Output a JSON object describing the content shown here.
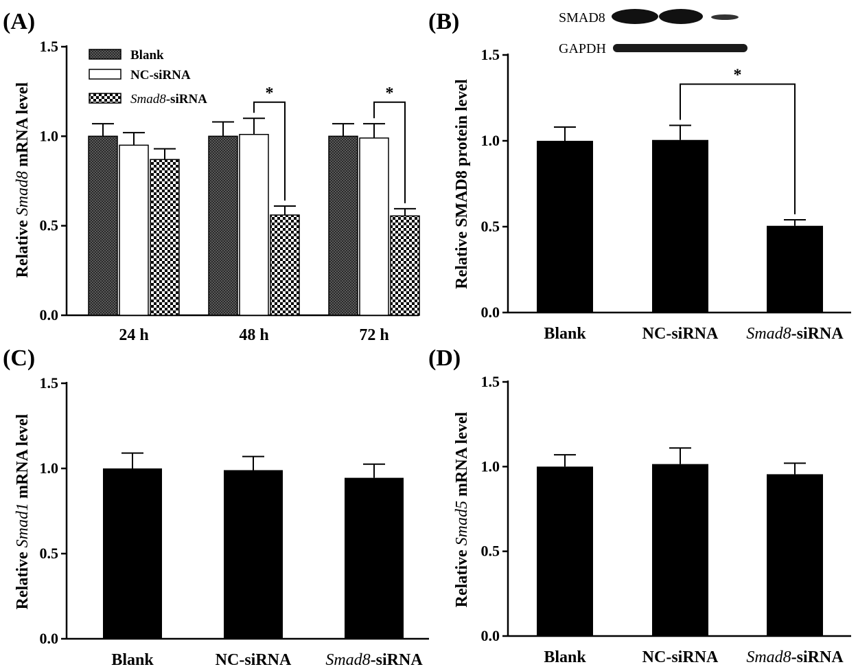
{
  "panels": {
    "A": {
      "label": "(A)",
      "ylabel_pre": "Relative ",
      "ylabel_gene": "Smad8",
      "ylabel_post": " mRNA level"
    },
    "B": {
      "label": "(B)",
      "ylabel": "Relative SMAD8 protein level"
    },
    "C": {
      "label": "(C)",
      "ylabel_pre": "Relative ",
      "ylabel_gene": "Smad1",
      "ylabel_post": " mRNA level"
    },
    "D": {
      "label": "(D)",
      "ylabel_pre": "Relative ",
      "ylabel_gene": "Smad5",
      "ylabel_post": " mRNA level"
    }
  },
  "ticks": [
    "0.0",
    "0.5",
    "1.0",
    "1.5"
  ],
  "group_labels": {
    "blank": "Blank",
    "nc": "NC-siRNA",
    "smad8_gene": "Smad8",
    "smad8_suffix": "-siRNA"
  },
  "blot": {
    "band1": "SMAD8",
    "band2": "GAPDH"
  },
  "significance": "*",
  "chart_data": [
    {
      "panel": "A",
      "type": "bar",
      "categories": [
        "24 h",
        "48 h",
        "72 h"
      ],
      "series": [
        {
          "name": "Blank",
          "values": [
            1.0,
            1.0,
            1.0
          ],
          "errors": [
            0.07,
            0.08,
            0.07
          ]
        },
        {
          "name": "NC-siRNA",
          "values": [
            0.95,
            1.01,
            0.99
          ],
          "errors": [
            0.07,
            0.09,
            0.08
          ]
        },
        {
          "name": "Smad8-siRNA",
          "values": [
            0.87,
            0.56,
            0.555
          ],
          "errors": [
            0.06,
            0.05,
            0.04
          ]
        }
      ],
      "significance": [
        {
          "category": "48 h",
          "between": [
            "NC-siRNA",
            "Smad8-siRNA"
          ],
          "label": "*"
        },
        {
          "category": "72 h",
          "between": [
            "NC-siRNA",
            "Smad8-siRNA"
          ],
          "label": "*"
        }
      ],
      "ylabel": "Relative Smad8 mRNA level",
      "ylim": [
        0,
        1.5
      ]
    },
    {
      "panel": "B",
      "type": "bar",
      "categories": [
        "Blank",
        "NC-siRNA",
        "Smad8-siRNA"
      ],
      "values": [
        1.0,
        1.005,
        0.505
      ],
      "errors": [
        0.08,
        0.085,
        0.035
      ],
      "significance": [
        {
          "between": [
            "NC-siRNA",
            "Smad8-siRNA"
          ],
          "label": "*"
        }
      ],
      "ylabel": "Relative SMAD8 protein level",
      "ylim": [
        0,
        1.5
      ]
    },
    {
      "panel": "C",
      "type": "bar",
      "categories": [
        "Blank",
        "NC-siRNA",
        "Smad8-siRNA"
      ],
      "values": [
        1.0,
        0.99,
        0.945
      ],
      "errors": [
        0.09,
        0.08,
        0.08
      ],
      "ylabel": "Relative Smad1 mRNA level",
      "ylim": [
        0,
        1.5
      ]
    },
    {
      "panel": "D",
      "type": "bar",
      "categories": [
        "Blank",
        "NC-siRNA",
        "Smad8-siRNA"
      ],
      "values": [
        1.0,
        1.015,
        0.955
      ],
      "errors": [
        0.07,
        0.095,
        0.065
      ],
      "ylabel": "Relative Smad5 mRNA level",
      "ylim": [
        0,
        1.5
      ]
    }
  ]
}
